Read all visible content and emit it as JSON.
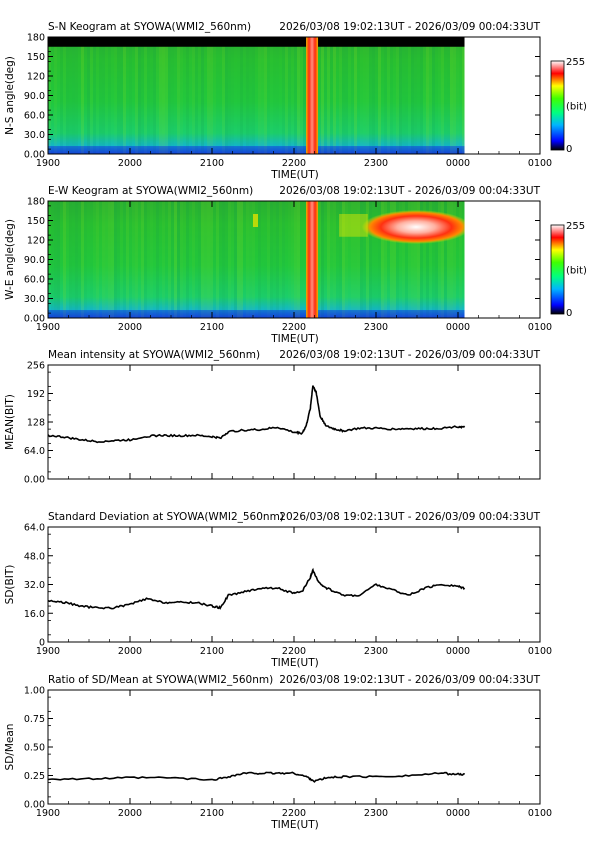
{
  "common": {
    "time_range": "2026/03/08 19:02:13UT - 2026/03/09 00:04:33UT",
    "x_ticks": [
      "1900",
      "2000",
      "2100",
      "2200",
      "2300",
      "0000",
      "0100"
    ],
    "x_ticks_hours": [
      19,
      20,
      21,
      22,
      23,
      24,
      25
    ],
    "data_end_hour": 24.08,
    "xlabel": "TIME(UT)"
  },
  "charts": [
    {
      "type": "heatmap",
      "title": "S-N Keogram at SYOWA(WMI2_560nm)",
      "ylabel": "N-S angle(deg)",
      "y_ticks": [
        "0.00",
        "30.0",
        "60.0",
        "90.0",
        "120",
        "150",
        "180"
      ],
      "ylim": [
        0,
        180
      ],
      "colorbar": {
        "max": "255",
        "unit": "(bit)",
        "min": "0"
      },
      "features": {
        "bright_arc_hour": 22.22,
        "missing_top_band": [
          165,
          180
        ]
      },
      "x_labels_shown": true
    },
    {
      "type": "heatmap",
      "title": "E-W Keogram at SYOWA(WMI2_560nm)",
      "ylabel": "W-E angle(deg)",
      "y_ticks": [
        "0.00",
        "30.0",
        "60.0",
        "90.0",
        "120",
        "150",
        "180"
      ],
      "ylim": [
        0,
        180
      ],
      "colorbar": {
        "max": "255",
        "unit": "(bit)",
        "min": "0"
      },
      "features": {
        "bright_arc_hour": 22.22,
        "bright_patch": {
          "hours": [
            22.9,
            24.08
          ],
          "deg": [
            120,
            160
          ]
        }
      },
      "x_labels_shown": true
    },
    {
      "type": "line",
      "title": "Mean intensity at SYOWA(WMI2_560nm)",
      "ylabel": "MEAN(BIT)",
      "y_ticks": [
        "0.00",
        "64.0",
        "128",
        "192",
        "256"
      ],
      "ylim": [
        0,
        256
      ],
      "x_labels_shown": false,
      "series": [
        {
          "x": [
            19.0,
            19.2,
            19.4,
            19.6,
            19.8,
            20.0,
            20.2,
            20.4,
            20.6,
            20.8,
            21.0,
            21.1,
            21.2,
            21.4,
            21.6,
            21.8,
            22.0,
            22.1,
            22.15,
            22.2,
            22.23,
            22.27,
            22.32,
            22.4,
            22.5,
            22.6,
            22.8,
            23.0,
            23.2,
            23.4,
            23.6,
            23.8,
            24.0,
            24.08
          ],
          "y": [
            98,
            94,
            88,
            84,
            86,
            88,
            96,
            98,
            97,
            98,
            95,
            92,
            106,
            110,
            111,
            116,
            105,
            103,
            120,
            160,
            210,
            195,
            140,
            118,
            112,
            108,
            114,
            114,
            112,
            113,
            113,
            114,
            118,
            116
          ]
        }
      ]
    },
    {
      "type": "line",
      "title": "Standard Deviation at SYOWA(WMI2_560nm)",
      "ylabel": "SD(BIT)",
      "y_ticks": [
        "0",
        "16.0",
        "32.0",
        "48.0",
        "64.0"
      ],
      "ylim": [
        0,
        64
      ],
      "x_labels_shown": true,
      "series": [
        {
          "x": [
            19.0,
            19.2,
            19.4,
            19.6,
            19.8,
            20.0,
            20.2,
            20.4,
            20.6,
            20.8,
            21.0,
            21.1,
            21.2,
            21.4,
            21.6,
            21.8,
            22.0,
            22.1,
            22.2,
            22.23,
            22.3,
            22.4,
            22.6,
            22.8,
            23.0,
            23.2,
            23.4,
            23.6,
            23.8,
            24.0,
            24.08
          ],
          "y": [
            23,
            22,
            20,
            19,
            19,
            21,
            24,
            22,
            22,
            22,
            20,
            19,
            26,
            28,
            30,
            30,
            27,
            28,
            36,
            40,
            33,
            30,
            26,
            26,
            32,
            29,
            26,
            30,
            32,
            31,
            30
          ]
        }
      ]
    },
    {
      "type": "line",
      "title": "Ratio of SD/Mean at SYOWA(WMI2_560nm)",
      "ylabel": "SD/Mean",
      "y_ticks": [
        "0.00",
        "0.25",
        "0.50",
        "0.75",
        "1.00"
      ],
      "ylim": [
        0,
        1
      ],
      "x_labels_shown": true,
      "series": [
        {
          "x": [
            19.0,
            19.5,
            20.0,
            20.5,
            21.0,
            21.2,
            21.4,
            21.6,
            21.8,
            22.0,
            22.15,
            22.25,
            22.4,
            22.6,
            23.0,
            23.4,
            23.8,
            24.0,
            24.08
          ],
          "y": [
            0.22,
            0.22,
            0.23,
            0.23,
            0.21,
            0.24,
            0.27,
            0.27,
            0.27,
            0.27,
            0.24,
            0.2,
            0.23,
            0.24,
            0.24,
            0.25,
            0.27,
            0.26,
            0.26
          ]
        }
      ]
    }
  ],
  "colors": {
    "line": "#000000",
    "empty_band": "#000000"
  }
}
